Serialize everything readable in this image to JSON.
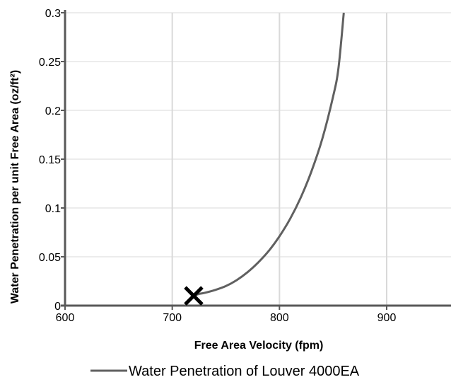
{
  "chart_data": {
    "type": "line",
    "title": "",
    "xlabel": "Free Area Velocity (fpm)",
    "ylabel": "Water Penetration per unit Free Area (oz/ft²)",
    "xlim": [
      600,
      960
    ],
    "ylim": [
      0,
      0.3
    ],
    "x_ticks": [
      600,
      700,
      800,
      900
    ],
    "x_tick_labels": [
      "600",
      "700",
      "800",
      "900"
    ],
    "y_ticks": [
      0,
      0.05,
      0.1,
      0.15,
      0.2,
      0.25,
      0.3
    ],
    "y_tick_labels": [
      "0",
      "0.05",
      "0.1",
      "0.15",
      "0.2",
      "0.25",
      "0.3"
    ],
    "grid": {
      "x": true,
      "y": true
    },
    "legend": {
      "position": "bottom"
    },
    "series": [
      {
        "name": "Water Penetration of Louver 4000EA",
        "color": "#606060",
        "x": [
          720,
          725,
          730,
          740,
          750,
          760,
          770,
          780,
          790,
          800,
          810,
          820,
          830,
          840,
          850,
          855,
          860
        ],
        "y": [
          0.01,
          0.012,
          0.013,
          0.016,
          0.02,
          0.026,
          0.034,
          0.044,
          0.056,
          0.071,
          0.089,
          0.111,
          0.138,
          0.171,
          0.214,
          0.243,
          0.3
        ]
      }
    ],
    "markers": [
      {
        "symbol": "x",
        "x": 720,
        "y": 0.01,
        "color": "#000000"
      }
    ]
  }
}
